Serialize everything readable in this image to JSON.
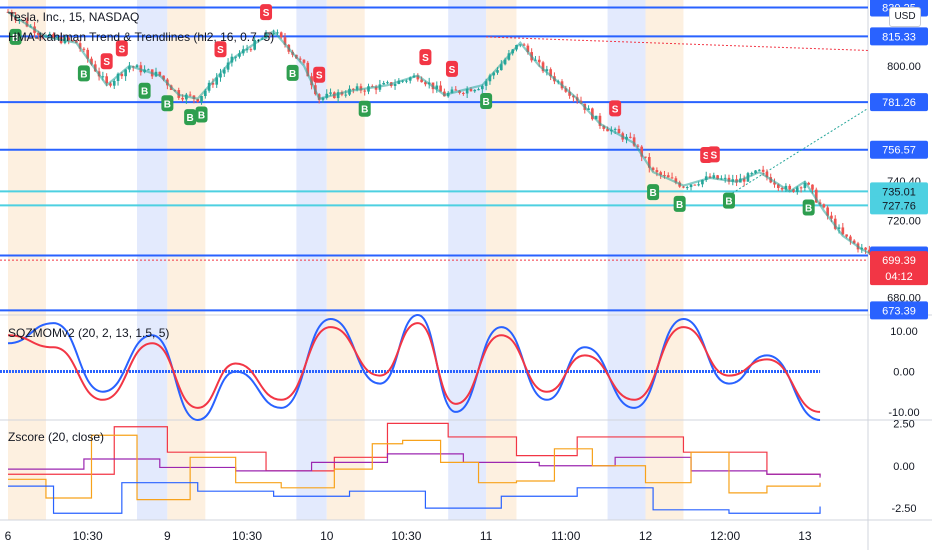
{
  "header": {
    "symbol_line": "Tesla, Inc., 15, NASDAQ",
    "indicator_line": "HMA-Kahlman Trend & Trendlines (hl2, 16, 0.7, 5)",
    "currency": "USD"
  },
  "oscillator": {
    "title": "SQZMOMv2 (20, 2, 13, 1.5, 5)"
  },
  "zscore": {
    "title": "Zscore (20, close)"
  },
  "colors": {
    "level_line": "#2962ff",
    "support_line": "#4dd0e1",
    "up_candle": "#26a69a",
    "down_candle": "#ef5350",
    "buy_marker": "#2e9e4f",
    "sell_marker": "#f23645",
    "price_badge": "#f23645",
    "blue_band": "#e3eafd",
    "orange_band": "#fdf0e0"
  },
  "chart_data": [
    {
      "type": "candlestick",
      "title": "Tesla, Inc., 15, NASDAQ",
      "ylim": [
        672,
        830
      ],
      "y_ticks": [
        800.0,
        740.4,
        720.0,
        680.0
      ],
      "level_lines": [
        {
          "value": 830.25,
          "label": "830.25",
          "color": "#2962ff"
        },
        {
          "value": 815.33,
          "label": "815.33",
          "color": "#2962ff"
        },
        {
          "value": 781.26,
          "label": "781.26",
          "color": "#2962ff"
        },
        {
          "value": 756.57,
          "label": "756.57",
          "color": "#2962ff"
        },
        {
          "value": 735.01,
          "label": "735.01",
          "color": "#4dd0e1"
        },
        {
          "value": 727.76,
          "label": "727.76",
          "color": "#4dd0e1"
        },
        {
          "value": 701.81,
          "label": "701.81",
          "color": "#2962ff"
        },
        {
          "value": 673.39,
          "label": "673.39",
          "color": "#2962ff"
        }
      ],
      "last_price": {
        "value": 699.39,
        "label": "699.39",
        "countdown": "04:12"
      },
      "close_path": [
        [
          0,
          828
        ],
        [
          10,
          815
        ],
        [
          18,
          812
        ],
        [
          26,
          790
        ],
        [
          32,
          800
        ],
        [
          40,
          795
        ],
        [
          45,
          785
        ],
        [
          50,
          783
        ],
        [
          60,
          805
        ],
        [
          70,
          818
        ],
        [
          78,
          800
        ],
        [
          82,
          783
        ],
        [
          90,
          787
        ],
        [
          100,
          790
        ],
        [
          108,
          795
        ],
        [
          115,
          785
        ],
        [
          125,
          790
        ],
        [
          135,
          812
        ],
        [
          140,
          800
        ],
        [
          146,
          790
        ],
        [
          150,
          783
        ],
        [
          156,
          770
        ],
        [
          165,
          760
        ],
        [
          170,
          745
        ],
        [
          178,
          738
        ],
        [
          185,
          742
        ],
        [
          192,
          740
        ],
        [
          198,
          745
        ],
        [
          206,
          735
        ],
        [
          210,
          740
        ],
        [
          215,
          725
        ],
        [
          220,
          712
        ],
        [
          225,
          705
        ],
        [
          230,
          700
        ]
      ],
      "signals": [
        {
          "t": 2,
          "type": "B",
          "label": "B"
        },
        {
          "t": 20,
          "type": "B",
          "label": "B"
        },
        {
          "t": 26,
          "type": "S",
          "label": "S"
        },
        {
          "t": 30,
          "type": "S",
          "label": "S"
        },
        {
          "t": 36,
          "type": "B",
          "label": "B"
        },
        {
          "t": 42,
          "type": "B",
          "label": "B"
        },
        {
          "t": 48,
          "type": "B",
          "label": "B"
        },
        {
          "t": 51,
          "type": "B",
          "label": "B"
        },
        {
          "t": 56,
          "type": "S",
          "label": "S"
        },
        {
          "t": 68,
          "type": "S",
          "label": "S"
        },
        {
          "t": 75,
          "type": "B",
          "label": "B"
        },
        {
          "t": 82,
          "type": "S",
          "label": "S"
        },
        {
          "t": 94,
          "type": "B",
          "label": "B"
        },
        {
          "t": 110,
          "type": "S",
          "label": "S"
        },
        {
          "t": 117,
          "type": "S",
          "label": "S"
        },
        {
          "t": 126,
          "type": "B",
          "label": "B"
        },
        {
          "t": 160,
          "type": "S",
          "label": "S"
        },
        {
          "t": 170,
          "type": "B",
          "label": "B"
        },
        {
          "t": 177,
          "type": "B",
          "label": "B"
        },
        {
          "t": 184,
          "type": "S",
          "label": "S"
        },
        {
          "t": 186,
          "type": "S",
          "label": "S"
        },
        {
          "t": 190,
          "type": "B",
          "label": "B"
        },
        {
          "t": 211,
          "type": "B",
          "label": "B"
        }
      ]
    },
    {
      "type": "line",
      "title": "SQZMOMv2 (20, 2, 13, 1.5, 5)",
      "ylim": [
        -12,
        14
      ],
      "y_ticks": [
        10.0,
        0.0,
        -10.0
      ],
      "series": [
        {
          "color": "#2962ff",
          "points": [
            [
              0,
              7
            ],
            [
              12,
              12
            ],
            [
              25,
              -5
            ],
            [
              38,
              9
            ],
            [
              50,
              -12
            ],
            [
              60,
              0
            ],
            [
              72,
              -9
            ],
            [
              85,
              13
            ],
            [
              98,
              -3
            ],
            [
              108,
              14
            ],
            [
              118,
              -10
            ],
            [
              130,
              11
            ],
            [
              142,
              -7
            ],
            [
              152,
              6
            ],
            [
              165,
              -9
            ],
            [
              178,
              13
            ],
            [
              190,
              -3
            ],
            [
              200,
              4
            ],
            [
              214,
              -12
            ]
          ]
        },
        {
          "color": "#f23645",
          "points": [
            [
              0,
              9
            ],
            [
              12,
              6
            ],
            [
              25,
              -7
            ],
            [
              38,
              7
            ],
            [
              50,
              -9
            ],
            [
              60,
              2
            ],
            [
              72,
              -7
            ],
            [
              85,
              11
            ],
            [
              98,
              -1
            ],
            [
              108,
              12
            ],
            [
              118,
              -8
            ],
            [
              130,
              9
            ],
            [
              142,
              -5
            ],
            [
              152,
              4
            ],
            [
              165,
              -7
            ],
            [
              178,
              11
            ],
            [
              190,
              -1
            ],
            [
              200,
              3
            ],
            [
              214,
              -10
            ]
          ]
        }
      ]
    },
    {
      "type": "line",
      "title": "Zscore (20, close)",
      "ylim": [
        -3.2,
        2.7
      ],
      "y_ticks": [
        2.5,
        0.0,
        -2.5
      ],
      "series": [
        {
          "color": "#f23645",
          "points": [
            [
              0,
              -0.5
            ],
            [
              28,
              2.3
            ],
            [
              42,
              0.8
            ],
            [
              68,
              -0.3
            ],
            [
              86,
              0.5
            ],
            [
              100,
              2.5
            ],
            [
              116,
              1.7
            ],
            [
              134,
              0.6
            ],
            [
              150,
              1.7
            ],
            [
              178,
              0.8
            ],
            [
              200,
              -0.5
            ],
            [
              214,
              -0.6
            ]
          ]
        },
        {
          "color": "#9c27b0",
          "points": [
            [
              0,
              -0.2
            ],
            [
              20,
              0.4
            ],
            [
              40,
              -0.1
            ],
            [
              60,
              -0.3
            ],
            [
              80,
              0.2
            ],
            [
              100,
              0.7
            ],
            [
              120,
              0.2
            ],
            [
              140,
              0.0
            ],
            [
              160,
              0.5
            ],
            [
              180,
              -0.3
            ],
            [
              200,
              -0.5
            ],
            [
              214,
              -0.7
            ]
          ]
        },
        {
          "color": "#f7a21b",
          "points": [
            [
              0,
              -0.8
            ],
            [
              10,
              -1.9
            ],
            [
              22,
              1.8
            ],
            [
              34,
              -2.0
            ],
            [
              48,
              0.5
            ],
            [
              60,
              -1.0
            ],
            [
              72,
              -1.3
            ],
            [
              86,
              -0.2
            ],
            [
              96,
              1.3
            ],
            [
              104,
              1.5
            ],
            [
              114,
              0.2
            ],
            [
              124,
              -1.0
            ],
            [
              134,
              -0.9
            ],
            [
              144,
              1.0
            ],
            [
              154,
              0.0
            ],
            [
              168,
              -1.0
            ],
            [
              180,
              0.8
            ],
            [
              190,
              -1.6
            ],
            [
              200,
              -1.2
            ],
            [
              214,
              -1.0
            ]
          ]
        },
        {
          "color": "#2962ff",
          "points": [
            [
              0,
              -1.2
            ],
            [
              12,
              -2.8
            ],
            [
              30,
              -1.0
            ],
            [
              50,
              -1.5
            ],
            [
              70,
              -1.8
            ],
            [
              90,
              -1.5
            ],
            [
              110,
              -2.5
            ],
            [
              130,
              -1.8
            ],
            [
              150,
              -1.3
            ],
            [
              170,
              -2.6
            ],
            [
              190,
              -2.8
            ],
            [
              214,
              -2.4
            ]
          ]
        }
      ]
    }
  ],
  "x_axis": {
    "labels": [
      "6",
      "10:30",
      "9",
      "10:30",
      "10",
      "10:30",
      "11",
      "11:00",
      "12",
      "12:00",
      "13"
    ],
    "label_bars": [
      0,
      21,
      42,
      63,
      84,
      105,
      126,
      147,
      168,
      189,
      210
    ]
  },
  "sessions": [
    {
      "start": 0,
      "end": 10,
      "kind": "orange"
    },
    {
      "start": 34,
      "end": 42,
      "kind": "blue"
    },
    {
      "start": 42,
      "end": 52,
      "kind": "orange"
    },
    {
      "start": 76,
      "end": 84,
      "kind": "blue"
    },
    {
      "start": 84,
      "end": 94,
      "kind": "orange"
    },
    {
      "start": 116,
      "end": 126,
      "kind": "blue"
    },
    {
      "start": 126,
      "end": 134,
      "kind": "orange"
    },
    {
      "start": 158,
      "end": 168,
      "kind": "blue"
    },
    {
      "start": 168,
      "end": 178,
      "kind": "orange"
    }
  ]
}
